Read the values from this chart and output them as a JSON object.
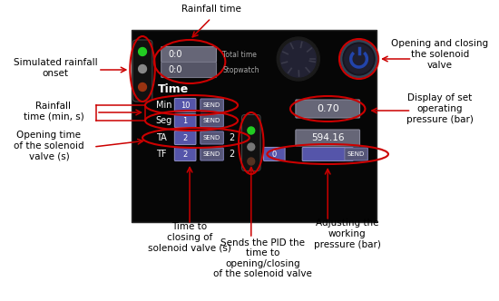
{
  "bg_color": "#ffffff",
  "panel_color": "#060606",
  "labels": {
    "rainfall_time": "Rainfall time",
    "simulated_rainfall": "Simulated rainfall\nonset",
    "rainfall_time_min": "Rainfall\ntime (min, s)",
    "opening_time": "Opening time\nof the solenoid\nvalve (s)",
    "opening_closing_valve": "Opening and closing\nthe solenoid\nvalve",
    "display_pressure": "Display of set\noperating\npressure (bar)",
    "time_closing": "Time to\nclosing of\nsolenoid valve (s)",
    "adjusting_pressure": "Adjusting the\nworking\npressure (bar)",
    "sends_pid": "Sends the PID the\ntime to\nopening/closing\nof the solenoid valve"
  },
  "red": "#cc0000",
  "white": "#ffffff",
  "panel_text": "#ffffff",
  "input_bg": "#5555aa",
  "display_bg": "#666677",
  "send_bg": "#555577",
  "gray_display": "#777788"
}
